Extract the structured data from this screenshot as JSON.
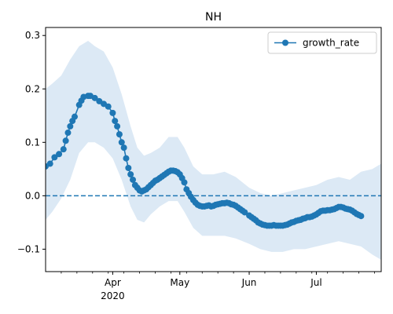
{
  "chart_data": {
    "type": "line",
    "title": "NH",
    "xlabel": "",
    "ylabel": "",
    "x_axis": {
      "type": "date",
      "range": [
        "2020-03-02",
        "2020-07-30"
      ],
      "major_ticks": [
        {
          "date": "2020-04-01",
          "label": "Apr",
          "sublabel": "2020"
        },
        {
          "date": "2020-05-01",
          "label": "May",
          "sublabel": ""
        },
        {
          "date": "2020-06-01",
          "label": "Jun",
          "sublabel": ""
        },
        {
          "date": "2020-07-01",
          "label": "Jul",
          "sublabel": ""
        }
      ],
      "minor_tick_interval": "weekly"
    },
    "y_axis": {
      "range": [
        -0.142,
        0.315
      ],
      "ticks": [
        -0.1,
        0.0,
        0.1,
        0.2,
        0.3
      ],
      "tick_labels": [
        "−0.1",
        "0.0",
        "0.1",
        "0.2",
        "0.3"
      ]
    },
    "grid": false,
    "legend": {
      "position": "top-right",
      "entries": [
        "growth_rate"
      ]
    },
    "reference_line": {
      "y": 0.0,
      "style": "dashed",
      "color": "#1f77b4"
    },
    "colors": {
      "series": "#1f77b4",
      "band": "#dce9f5"
    },
    "series": [
      {
        "name": "growth_rate",
        "marker": "circle",
        "points": [
          [
            "2020-03-02",
            0.055
          ],
          [
            "2020-03-04",
            0.06
          ],
          [
            "2020-03-06",
            0.072
          ],
          [
            "2020-03-08",
            0.078
          ],
          [
            "2020-03-10",
            0.087
          ],
          [
            "2020-03-11",
            0.103
          ],
          [
            "2020-03-12",
            0.118
          ],
          [
            "2020-03-13",
            0.13
          ],
          [
            "2020-03-14",
            0.14
          ],
          [
            "2020-03-15",
            0.148
          ],
          [
            "2020-03-17",
            0.17
          ],
          [
            "2020-03-18",
            0.178
          ],
          [
            "2020-03-19",
            0.185
          ],
          [
            "2020-03-21",
            0.187
          ],
          [
            "2020-03-22",
            0.187
          ],
          [
            "2020-03-24",
            0.183
          ],
          [
            "2020-03-26",
            0.177
          ],
          [
            "2020-03-28",
            0.172
          ],
          [
            "2020-03-30",
            0.167
          ],
          [
            "2020-04-01",
            0.155
          ],
          [
            "2020-04-02",
            0.14
          ],
          [
            "2020-04-03",
            0.13
          ],
          [
            "2020-04-04",
            0.115
          ],
          [
            "2020-04-05",
            0.1
          ],
          [
            "2020-04-06",
            0.09
          ],
          [
            "2020-04-07",
            0.07
          ],
          [
            "2020-04-08",
            0.052
          ],
          [
            "2020-04-09",
            0.04
          ],
          [
            "2020-04-10",
            0.03
          ],
          [
            "2020-04-11",
            0.02
          ],
          [
            "2020-04-12",
            0.015
          ],
          [
            "2020-04-13",
            0.01
          ],
          [
            "2020-04-14",
            0.008
          ],
          [
            "2020-04-15",
            0.01
          ],
          [
            "2020-04-16",
            0.012
          ],
          [
            "2020-04-17",
            0.016
          ],
          [
            "2020-04-18",
            0.02
          ],
          [
            "2020-04-19",
            0.024
          ],
          [
            "2020-04-20",
            0.028
          ],
          [
            "2020-04-21",
            0.03
          ],
          [
            "2020-04-22",
            0.033
          ],
          [
            "2020-04-23",
            0.036
          ],
          [
            "2020-04-24",
            0.039
          ],
          [
            "2020-04-25",
            0.042
          ],
          [
            "2020-04-26",
            0.045
          ],
          [
            "2020-04-27",
            0.047
          ],
          [
            "2020-04-28",
            0.047
          ],
          [
            "2020-04-29",
            0.046
          ],
          [
            "2020-04-30",
            0.044
          ],
          [
            "2020-05-01",
            0.04
          ],
          [
            "2020-05-02",
            0.033
          ],
          [
            "2020-05-03",
            0.025
          ],
          [
            "2020-05-04",
            0.012
          ],
          [
            "2020-05-05",
            0.005
          ],
          [
            "2020-05-06",
            -0.002
          ],
          [
            "2020-05-07",
            -0.008
          ],
          [
            "2020-05-08",
            -0.013
          ],
          [
            "2020-05-09",
            -0.017
          ],
          [
            "2020-05-10",
            -0.019
          ],
          [
            "2020-05-11",
            -0.02
          ],
          [
            "2020-05-12",
            -0.02
          ],
          [
            "2020-05-13",
            -0.019
          ],
          [
            "2020-05-14",
            -0.018
          ],
          [
            "2020-05-15",
            -0.02
          ],
          [
            "2020-05-16",
            -0.019
          ],
          [
            "2020-05-17",
            -0.017
          ],
          [
            "2020-05-18",
            -0.016
          ],
          [
            "2020-05-19",
            -0.015
          ],
          [
            "2020-05-20",
            -0.014
          ],
          [
            "2020-05-21",
            -0.014
          ],
          [
            "2020-05-22",
            -0.013
          ],
          [
            "2020-05-23",
            -0.014
          ],
          [
            "2020-05-24",
            -0.016
          ],
          [
            "2020-05-25",
            -0.017
          ],
          [
            "2020-05-26",
            -0.019
          ],
          [
            "2020-05-27",
            -0.022
          ],
          [
            "2020-05-28",
            -0.025
          ],
          [
            "2020-05-29",
            -0.028
          ],
          [
            "2020-05-30",
            -0.031
          ],
          [
            "2020-06-01",
            -0.037
          ],
          [
            "2020-06-02",
            -0.04
          ],
          [
            "2020-06-03",
            -0.043
          ],
          [
            "2020-06-04",
            -0.046
          ],
          [
            "2020-06-05",
            -0.05
          ],
          [
            "2020-06-06",
            -0.052
          ],
          [
            "2020-06-07",
            -0.054
          ],
          [
            "2020-06-08",
            -0.055
          ],
          [
            "2020-06-09",
            -0.056
          ],
          [
            "2020-06-10",
            -0.056
          ],
          [
            "2020-06-11",
            -0.056
          ],
          [
            "2020-06-12",
            -0.055
          ],
          [
            "2020-06-13",
            -0.056
          ],
          [
            "2020-06-14",
            -0.056
          ],
          [
            "2020-06-15",
            -0.056
          ],
          [
            "2020-06-16",
            -0.056
          ],
          [
            "2020-06-17",
            -0.055
          ],
          [
            "2020-06-18",
            -0.054
          ],
          [
            "2020-06-19",
            -0.052
          ],
          [
            "2020-06-20",
            -0.05
          ],
          [
            "2020-06-21",
            -0.049
          ],
          [
            "2020-06-22",
            -0.047
          ],
          [
            "2020-06-23",
            -0.046
          ],
          [
            "2020-06-24",
            -0.045
          ],
          [
            "2020-06-25",
            -0.043
          ],
          [
            "2020-06-26",
            -0.042
          ],
          [
            "2020-06-27",
            -0.04
          ],
          [
            "2020-06-28",
            -0.04
          ],
          [
            "2020-06-29",
            -0.039
          ],
          [
            "2020-06-30",
            -0.037
          ],
          [
            "2020-07-01",
            -0.035
          ],
          [
            "2020-07-02",
            -0.032
          ],
          [
            "2020-07-03",
            -0.029
          ],
          [
            "2020-07-04",
            -0.028
          ],
          [
            "2020-07-05",
            -0.028
          ],
          [
            "2020-07-06",
            -0.027
          ],
          [
            "2020-07-07",
            -0.027
          ],
          [
            "2020-07-08",
            -0.026
          ],
          [
            "2020-07-09",
            -0.025
          ],
          [
            "2020-07-10",
            -0.023
          ],
          [
            "2020-07-11",
            -0.021
          ],
          [
            "2020-07-12",
            -0.021
          ],
          [
            "2020-07-13",
            -0.022
          ],
          [
            "2020-07-14",
            -0.024
          ],
          [
            "2020-07-15",
            -0.025
          ],
          [
            "2020-07-16",
            -0.026
          ],
          [
            "2020-07-17",
            -0.028
          ],
          [
            "2020-07-18",
            -0.031
          ],
          [
            "2020-07-19",
            -0.034
          ],
          [
            "2020-07-20",
            -0.036
          ],
          [
            "2020-07-21",
            -0.038
          ]
        ]
      }
    ],
    "band": {
      "upper": [
        [
          "2020-03-02",
          0.2
        ],
        [
          "2020-03-05",
          0.21
        ],
        [
          "2020-03-09",
          0.225
        ],
        [
          "2020-03-13",
          0.255
        ],
        [
          "2020-03-17",
          0.28
        ],
        [
          "2020-03-21",
          0.29
        ],
        [
          "2020-03-24",
          0.28
        ],
        [
          "2020-03-28",
          0.27
        ],
        [
          "2020-04-01",
          0.24
        ],
        [
          "2020-04-05",
          0.19
        ],
        [
          "2020-04-09",
          0.13
        ],
        [
          "2020-04-12",
          0.09
        ],
        [
          "2020-04-15",
          0.075
        ],
        [
          "2020-04-18",
          0.08
        ],
        [
          "2020-04-22",
          0.09
        ],
        [
          "2020-04-26",
          0.11
        ],
        [
          "2020-04-30",
          0.11
        ],
        [
          "2020-05-03",
          0.09
        ],
        [
          "2020-05-07",
          0.055
        ],
        [
          "2020-05-11",
          0.04
        ],
        [
          "2020-05-16",
          0.04
        ],
        [
          "2020-05-21",
          0.045
        ],
        [
          "2020-05-26",
          0.035
        ],
        [
          "2020-06-01",
          0.015
        ],
        [
          "2020-06-06",
          0.005
        ],
        [
          "2020-06-11",
          0.0
        ],
        [
          "2020-06-16",
          0.005
        ],
        [
          "2020-06-21",
          0.01
        ],
        [
          "2020-06-26",
          0.015
        ],
        [
          "2020-07-01",
          0.02
        ],
        [
          "2020-07-06",
          0.03
        ],
        [
          "2020-07-11",
          0.035
        ],
        [
          "2020-07-16",
          0.03
        ],
        [
          "2020-07-21",
          0.045
        ],
        [
          "2020-07-26",
          0.05
        ],
        [
          "2020-07-30",
          0.06
        ]
      ],
      "lower": [
        [
          "2020-03-02",
          -0.045
        ],
        [
          "2020-03-05",
          -0.03
        ],
        [
          "2020-03-09",
          -0.005
        ],
        [
          "2020-03-13",
          0.03
        ],
        [
          "2020-03-17",
          0.08
        ],
        [
          "2020-03-21",
          0.1
        ],
        [
          "2020-03-24",
          0.1
        ],
        [
          "2020-03-28",
          0.09
        ],
        [
          "2020-04-01",
          0.07
        ],
        [
          "2020-04-05",
          0.03
        ],
        [
          "2020-04-09",
          -0.02
        ],
        [
          "2020-04-12",
          -0.045
        ],
        [
          "2020-04-15",
          -0.05
        ],
        [
          "2020-04-18",
          -0.035
        ],
        [
          "2020-04-22",
          -0.02
        ],
        [
          "2020-04-26",
          -0.01
        ],
        [
          "2020-04-30",
          -0.01
        ],
        [
          "2020-05-03",
          -0.03
        ],
        [
          "2020-05-07",
          -0.06
        ],
        [
          "2020-05-11",
          -0.075
        ],
        [
          "2020-05-16",
          -0.075
        ],
        [
          "2020-05-21",
          -0.075
        ],
        [
          "2020-05-26",
          -0.08
        ],
        [
          "2020-06-01",
          -0.09
        ],
        [
          "2020-06-06",
          -0.1
        ],
        [
          "2020-06-11",
          -0.105
        ],
        [
          "2020-06-16",
          -0.105
        ],
        [
          "2020-06-21",
          -0.1
        ],
        [
          "2020-06-26",
          -0.1
        ],
        [
          "2020-07-01",
          -0.095
        ],
        [
          "2020-07-06",
          -0.09
        ],
        [
          "2020-07-11",
          -0.085
        ],
        [
          "2020-07-16",
          -0.09
        ],
        [
          "2020-07-21",
          -0.095
        ],
        [
          "2020-07-26",
          -0.11
        ],
        [
          "2020-07-30",
          -0.12
        ]
      ]
    }
  }
}
